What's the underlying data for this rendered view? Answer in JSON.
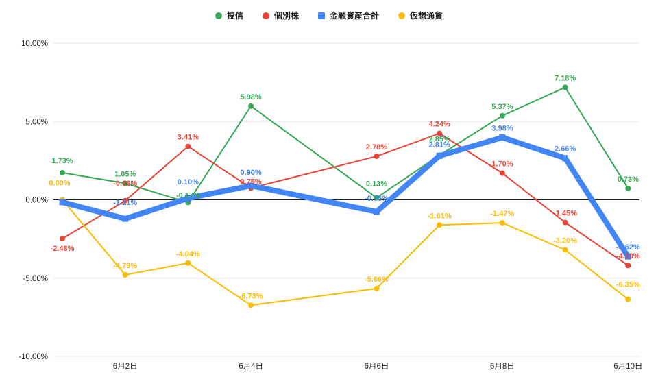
{
  "chart_data": {
    "type": "line",
    "title": "",
    "x_ticks": [
      "6月2日",
      "6月4日",
      "6月6日",
      "6月8日",
      "6月10日"
    ],
    "x_tick_point_indices": [
      1,
      3,
      5,
      7,
      9
    ],
    "y_ticks": [
      "10.00%",
      "5.00%",
      "0.00%",
      "-5.00%",
      "-10.00%"
    ],
    "ylim": [
      -10,
      10
    ],
    "num_points": 10,
    "grid": true,
    "legend_position": "top",
    "background_color": "#ffffff",
    "series": [
      {
        "name": "投信",
        "color": "#34A853",
        "marker": "circle",
        "line_width": 2,
        "values": [
          1.73,
          1.05,
          -0.17,
          5.98,
          null,
          0.13,
          2.85,
          5.37,
          7.18,
          0.73
        ],
        "labels": [
          "1.73%",
          "1.05%",
          "-0.17%",
          "5.98%",
          null,
          "0.13%",
          "2.85%",
          "5.37%",
          "7.18%",
          "0.73%"
        ]
      },
      {
        "name": "個別株",
        "color": "#EA4335",
        "marker": "circle",
        "line_width": 2,
        "values": [
          -2.48,
          -0.06,
          3.41,
          0.75,
          null,
          2.78,
          4.24,
          1.7,
          -1.45,
          -4.19
        ],
        "labels": [
          "-2.48%",
          "-0.06%",
          "3.41%",
          "0.75%",
          null,
          "2.78%",
          "4.24%",
          "1.70%",
          "-1.45%",
          "-4.19%"
        ]
      },
      {
        "name": "金融資産合計",
        "color": "#4285F4",
        "marker": "square",
        "line_width": 8,
        "values": [
          -0.15,
          -1.21,
          0.1,
          0.9,
          null,
          -0.76,
          2.81,
          3.98,
          2.66,
          -3.62
        ],
        "labels": [
          null,
          "-1.21%",
          "0.10%",
          "0.90%",
          null,
          "-0.76%",
          "2.81%",
          "3.98%",
          "2.66%",
          "-3.62%"
        ]
      },
      {
        "name": "仮想通貨",
        "color": "#FBBC04",
        "marker": "circle",
        "line_width": 2,
        "values": [
          0.0,
          -4.79,
          -4.04,
          -6.73,
          null,
          -5.66,
          -1.61,
          -1.47,
          -3.2,
          -6.35
        ],
        "labels": [
          "0.00%",
          "-4.79%",
          "-4.04%",
          "-6.73%",
          null,
          "-5.66%",
          "-1.61%",
          "-1.47%",
          "-3.20%",
          "-6.35%"
        ]
      }
    ]
  }
}
